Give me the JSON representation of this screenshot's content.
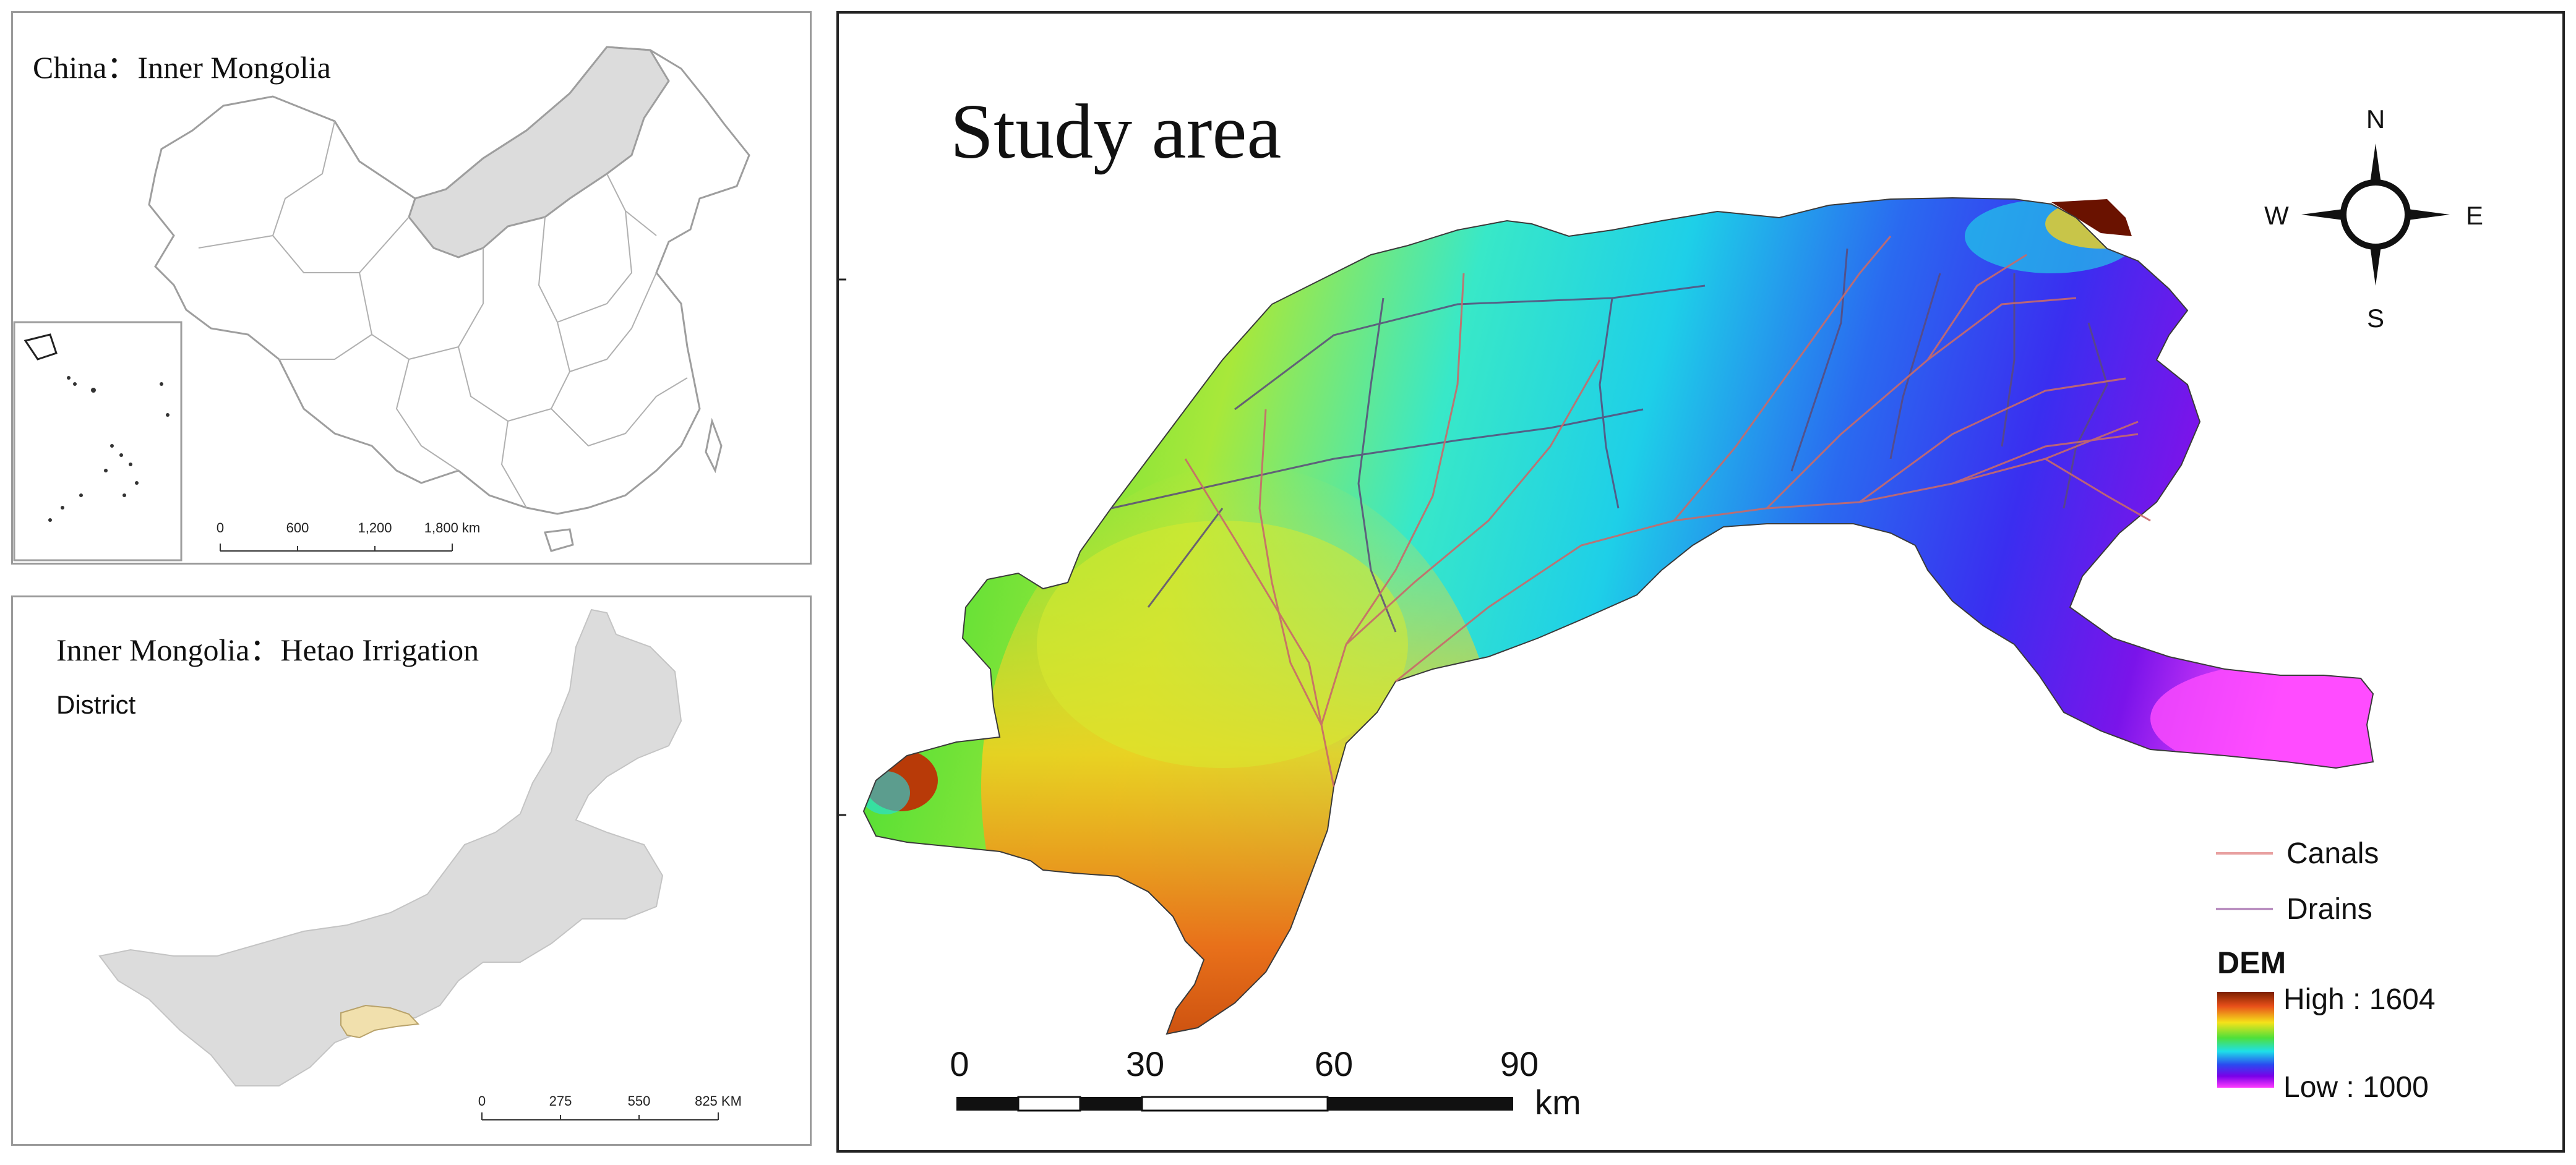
{
  "china_panel": {
    "title": "China：Inner Mongolia",
    "scale_labels": [
      "0",
      "600",
      "1,200",
      "1,800 km"
    ],
    "highlight_color": "#dcdcdc",
    "border_color": "#9e9e9e"
  },
  "inner_mongolia_panel": {
    "title_line1": "Inner Mongolia：Hetao Irrigation",
    "title_line2": "District",
    "scale_labels": [
      "0",
      "275",
      "550",
      "825 KM"
    ],
    "region_color": "#dcdcdc",
    "hetao_color": "#f1e0ad"
  },
  "study_panel": {
    "title": "Study area",
    "compass": {
      "n": "N",
      "s": "S",
      "e": "E",
      "w": "W"
    },
    "scale_labels": [
      "0",
      "30",
      "60",
      "90"
    ],
    "scale_unit": "km",
    "legend": {
      "canals_label": "Canals",
      "drains_label": "Drains",
      "dem_title": "DEM",
      "high_label": "High : 1604",
      "low_label": "Low : 1000",
      "canal_color": "#e8a0a0",
      "drain_color": "#b98fc0"
    },
    "dem_colors": [
      "#7a1f00",
      "#e8501a",
      "#f5e21a",
      "#4fe03a",
      "#1ee0e8",
      "#2a4af0",
      "#7a00e8",
      "#ff3cff"
    ]
  }
}
